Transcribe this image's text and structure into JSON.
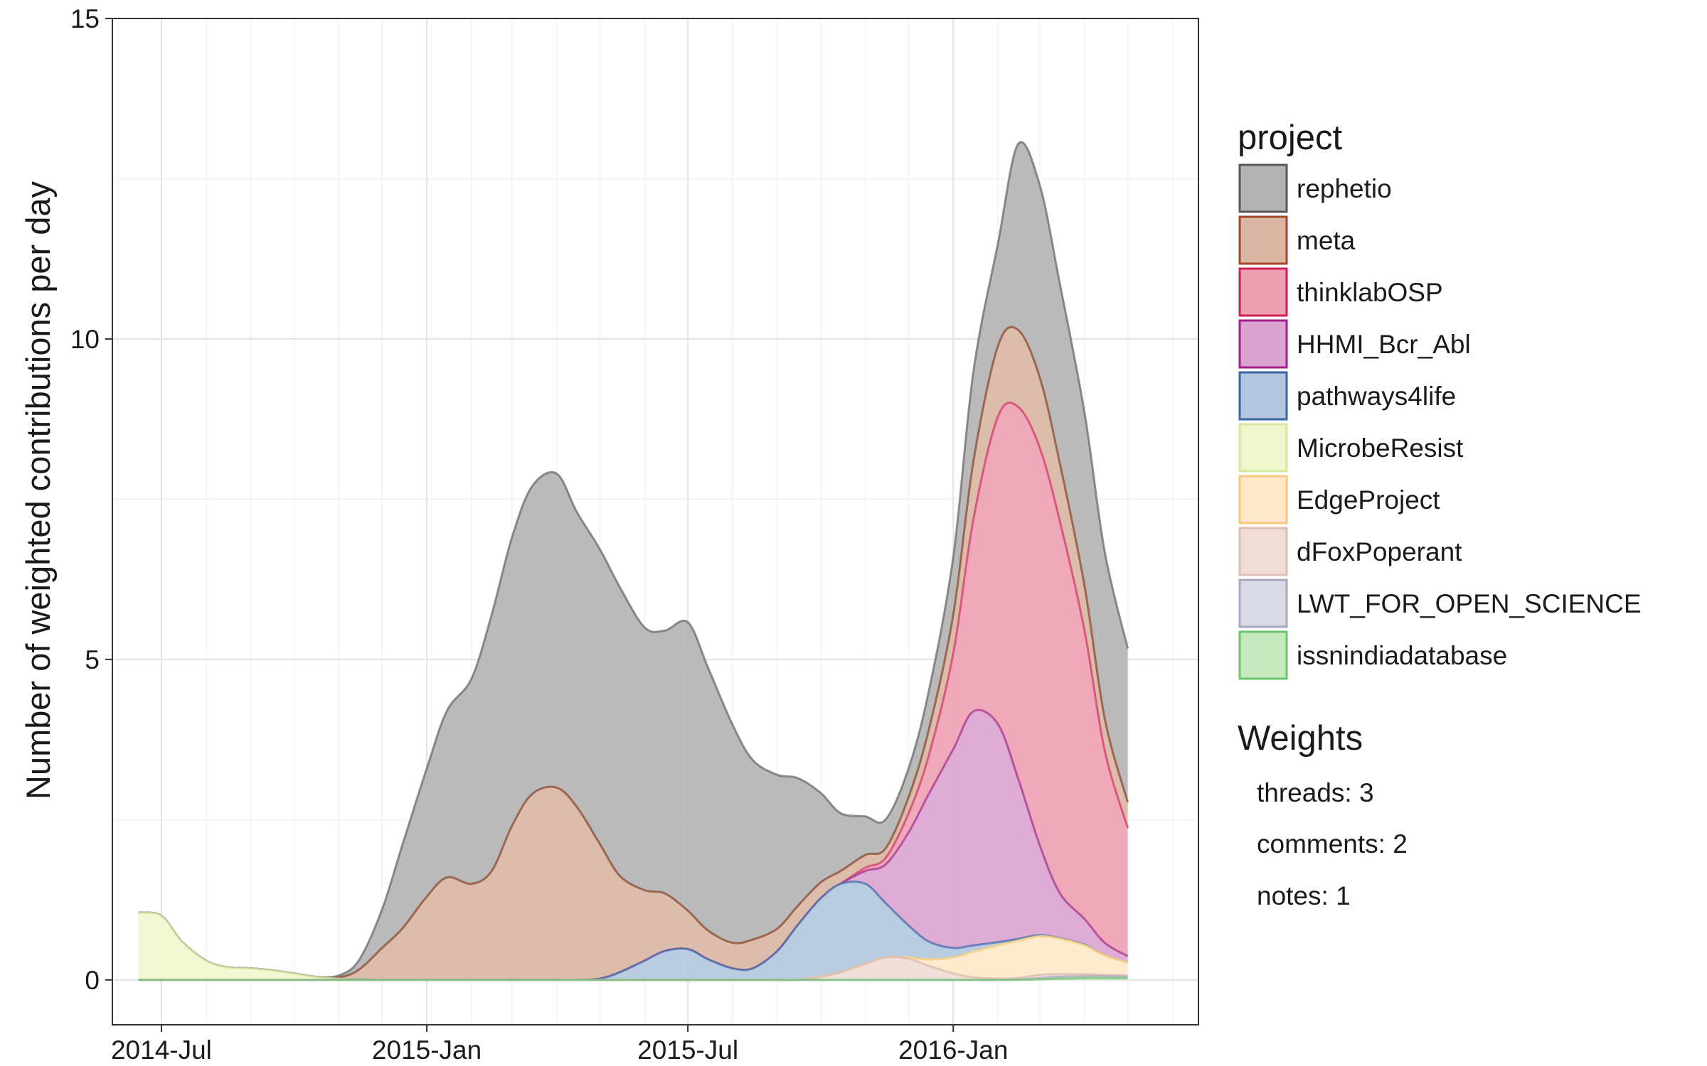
{
  "chart_data": {
    "type": "area",
    "stacked": true,
    "ylabel": "Number of weighted contributions per day",
    "xlabel": "",
    "ylim": [
      -0.7,
      15
    ],
    "xlim": [
      "2014-05-28",
      "2016-06-19"
    ],
    "x_ticks": [
      {
        "date": "2014-07-01",
        "label": "2014-Jul"
      },
      {
        "date": "2015-01-01",
        "label": "2015-Jan"
      },
      {
        "date": "2015-07-01",
        "label": "2015-Jul"
      },
      {
        "date": "2016-01-01",
        "label": "2016-Jan"
      }
    ],
    "y_ticks": [
      0,
      5,
      10,
      15
    ],
    "grid": true,
    "legend_position": "right",
    "x": [
      "2014-06-15",
      "2014-07-01",
      "2014-07-15",
      "2014-08-01",
      "2014-08-15",
      "2014-09-01",
      "2014-09-15",
      "2014-10-01",
      "2014-10-15",
      "2014-11-01",
      "2014-11-15",
      "2014-12-01",
      "2014-12-15",
      "2015-01-01",
      "2015-01-15",
      "2015-02-01",
      "2015-02-15",
      "2015-03-01",
      "2015-03-15",
      "2015-04-01",
      "2015-04-15",
      "2015-05-01",
      "2015-05-15",
      "2015-06-01",
      "2015-06-15",
      "2015-07-01",
      "2015-07-15",
      "2015-08-01",
      "2015-08-15",
      "2015-09-01",
      "2015-09-15",
      "2015-10-01",
      "2015-10-15",
      "2015-11-01",
      "2015-11-15",
      "2015-12-01",
      "2015-12-15",
      "2016-01-01",
      "2016-01-15",
      "2016-02-01",
      "2016-02-15",
      "2016-03-01",
      "2016-03-15",
      "2016-04-01",
      "2016-04-15",
      "2016-05-01"
    ],
    "series": [
      {
        "name": "issnindiadatabase",
        "color": "#c7e9c0",
        "stroke": "#74c476",
        "values": [
          0,
          0,
          0,
          0,
          0,
          0,
          0,
          0,
          0,
          0,
          0,
          0,
          0,
          0,
          0,
          0,
          0,
          0,
          0,
          0,
          0,
          0,
          0,
          0,
          0,
          0,
          0,
          0,
          0,
          0,
          0,
          0,
          0,
          0,
          0,
          0,
          0,
          0,
          0,
          0,
          0,
          0.01,
          0.02,
          0.03,
          0.03,
          0.03
        ]
      },
      {
        "name": "LWT_FOR_OPEN_SCIENCE",
        "color": "#d9dae3",
        "stroke": "#a9abbd",
        "values": [
          0,
          0,
          0,
          0,
          0,
          0,
          0,
          0,
          0,
          0,
          0,
          0,
          0,
          0,
          0,
          0,
          0,
          0,
          0,
          0,
          0,
          0,
          0,
          0,
          0,
          0,
          0,
          0,
          0,
          0,
          0,
          0,
          0,
          0,
          0,
          0,
          0,
          0,
          0,
          0,
          0.01,
          0.02,
          0.03,
          0.03,
          0.03,
          0.02
        ]
      },
      {
        "name": "dFoxPoperant",
        "color": "#f0dcd6",
        "stroke": "#dcb9ae",
        "values": [
          0,
          0,
          0,
          0,
          0,
          0,
          0,
          0,
          0,
          0,
          0,
          0,
          0,
          0,
          0,
          0,
          0,
          0,
          0,
          0,
          0,
          0,
          0,
          0,
          0,
          0,
          0,
          0,
          0,
          0,
          0,
          0.05,
          0.12,
          0.25,
          0.35,
          0.33,
          0.22,
          0.1,
          0.04,
          0.02,
          0.02,
          0.05,
          0.04,
          0.03,
          0.02,
          0.02
        ]
      },
      {
        "name": "EdgeProject",
        "color": "#fde9c8",
        "stroke": "#f7c97f",
        "values": [
          0,
          0,
          0,
          0,
          0,
          0,
          0,
          0,
          0,
          0,
          0,
          0,
          0,
          0,
          0,
          0,
          0,
          0,
          0,
          0,
          0,
          0,
          0,
          0,
          0,
          0,
          0,
          0,
          0,
          0,
          0,
          0,
          0,
          0,
          0,
          0.02,
          0.1,
          0.25,
          0.4,
          0.52,
          0.58,
          0.6,
          0.55,
          0.45,
          0.3,
          0.2
        ]
      },
      {
        "name": "MicrobeResist",
        "color": "#f1f7cd",
        "stroke": "#d8e99a",
        "values": [
          1.05,
          1.0,
          0.6,
          0.3,
          0.2,
          0.18,
          0.15,
          0.1,
          0.05,
          0.02,
          0.01,
          0,
          0,
          0,
          0,
          0,
          0,
          0,
          0,
          0,
          0,
          0,
          0,
          0,
          0,
          0,
          0,
          0,
          0,
          0,
          0,
          0,
          0,
          0,
          0,
          0,
          0,
          0,
          0,
          0,
          0,
          0,
          0,
          0,
          0,
          0
        ]
      },
      {
        "name": "pathways4life",
        "color": "#b3c6df",
        "stroke": "#4a6ea8",
        "values": [
          0,
          0,
          0,
          0,
          0,
          0,
          0,
          0,
          0,
          0,
          0,
          0,
          0,
          0,
          0,
          0,
          0,
          0,
          0,
          0,
          0,
          0.02,
          0.12,
          0.3,
          0.45,
          0.48,
          0.32,
          0.18,
          0.18,
          0.45,
          0.85,
          1.22,
          1.38,
          1.25,
          0.85,
          0.5,
          0.28,
          0.15,
          0.1,
          0.05,
          0.03,
          0.02,
          0.01,
          0.01,
          0,
          0
        ]
      },
      {
        "name": "HHMI_Bcr_Abl",
        "color": "#dba3d0",
        "stroke": "#a5358f",
        "values": [
          0,
          0,
          0,
          0,
          0,
          0,
          0,
          0,
          0,
          0,
          0,
          0,
          0,
          0,
          0,
          0,
          0,
          0,
          0,
          0,
          0,
          0,
          0,
          0,
          0,
          0,
          0,
          0,
          0,
          0,
          0,
          0,
          0,
          0.2,
          0.6,
          1.45,
          2.3,
          3.1,
          3.65,
          3.4,
          2.5,
          1.4,
          0.7,
          0.4,
          0.2,
          0.1
        ]
      },
      {
        "name": "thinklabOSP",
        "color": "#eda0b3",
        "stroke": "#d73a68",
        "values": [
          0,
          0,
          0,
          0,
          0,
          0,
          0,
          0,
          0,
          0,
          0,
          0,
          0,
          0,
          0,
          0,
          0,
          0,
          0,
          0,
          0,
          0,
          0,
          0,
          0,
          0,
          0,
          0,
          0,
          0,
          0,
          0,
          0,
          0.05,
          0.1,
          0.3,
          0.6,
          1.5,
          3,
          4.8,
          5.8,
          6.2,
          5.8,
          4.5,
          3,
          2
        ]
      },
      {
        "name": "meta",
        "color": "#d8b6a3",
        "stroke": "#8b4a30",
        "values": [
          0,
          0,
          0,
          0,
          0,
          0,
          0,
          0,
          0,
          0.02,
          0.15,
          0.5,
          0.8,
          1.3,
          1.6,
          1.5,
          1.7,
          2.4,
          2.9,
          3.0,
          2.7,
          2.1,
          1.5,
          1.1,
          0.9,
          0.6,
          0.45,
          0.4,
          0.45,
          0.35,
          0.3,
          0.25,
          0.2,
          0.2,
          0.15,
          0.25,
          0.4,
          0.6,
          0.9,
          1.1,
          1.2,
          1.1,
          0.9,
          0.7,
          0.5,
          0.4
        ]
      },
      {
        "name": "rephetio",
        "color": "#b3b3b3",
        "stroke": "#6b6b6b",
        "values": [
          0,
          0,
          0,
          0,
          0,
          0,
          0,
          0,
          0,
          0.03,
          0.15,
          0.6,
          1.3,
          2.0,
          2.6,
          3.2,
          4.0,
          4.5,
          4.8,
          4.9,
          4.6,
          4.6,
          4.5,
          4.1,
          4.1,
          4.5,
          4.1,
          3.4,
          2.8,
          2.4,
          2.0,
          1.4,
          0.9,
          0.6,
          0.45,
          0.45,
          0.6,
          0.9,
          1.4,
          1.6,
          2.9,
          3.0,
          2.8,
          2.7,
          2.6,
          2.4
        ]
      }
    ]
  },
  "legend": {
    "title": "project",
    "items": [
      {
        "label": "rephetio",
        "fill": "#b3b3b3",
        "stroke": "#5a5a5a"
      },
      {
        "label": "meta",
        "fill": "#d8b6a3",
        "stroke": "#a5462a"
      },
      {
        "label": "thinklabOSP",
        "fill": "#eda0b3",
        "stroke": "#d11b55"
      },
      {
        "label": "HHMI_Bcr_Abl",
        "fill": "#dba3d0",
        "stroke": "#a01f8a"
      },
      {
        "label": "pathways4life",
        "fill": "#b3c6df",
        "stroke": "#3b64a3"
      },
      {
        "label": "MicrobeResist",
        "fill": "#f1f7cd",
        "stroke": "#d4e7a0"
      },
      {
        "label": "EdgeProject",
        "fill": "#fde9c8",
        "stroke": "#f8c77e"
      },
      {
        "label": "dFoxPoperant",
        "fill": "#f0dcd6",
        "stroke": "#e0bdb2"
      },
      {
        "label": "LWT_FOR_OPEN_SCIENCE",
        "fill": "#d9dae3",
        "stroke": "#a7a9bb"
      },
      {
        "label": "issnindiadatabase",
        "fill": "#c7e9c0",
        "stroke": "#6cc46d"
      }
    ]
  },
  "weights": {
    "title": "Weights",
    "lines": [
      "threads: 3",
      "comments: 2",
      "notes: 1"
    ]
  }
}
